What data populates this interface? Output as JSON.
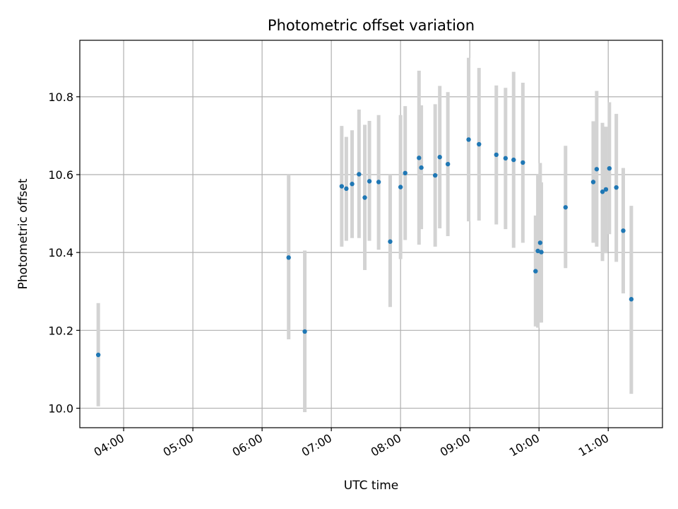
{
  "chart_data": {
    "type": "scatter",
    "title": "Photometric offset variation",
    "xlabel": "UTC time",
    "ylabel": "Photometric offset",
    "x_unit": "UTC time (HH:MM)",
    "xlim": [
      "03:22",
      "11:47"
    ],
    "ylim": [
      9.95,
      10.945
    ],
    "x_ticks": [
      "04:00",
      "05:00",
      "06:00",
      "07:00",
      "08:00",
      "09:00",
      "10:00",
      "11:00"
    ],
    "y_ticks": [
      "10.0",
      "10.2",
      "10.4",
      "10.6",
      "10.8"
    ],
    "grid": true,
    "colors": {
      "point": "#1f77b4",
      "errorbar": "#d3d3d3"
    },
    "points": [
      {
        "x": "03:38",
        "y": 10.137,
        "lo": 10.005,
        "hi": 10.27
      },
      {
        "x": "06:23",
        "y": 10.387,
        "lo": 10.177,
        "hi": 10.6
      },
      {
        "x": "06:37",
        "y": 10.197,
        "lo": 9.99,
        "hi": 10.405
      },
      {
        "x": "07:09",
        "y": 10.57,
        "lo": 10.415,
        "hi": 10.725
      },
      {
        "x": "07:13",
        "y": 10.564,
        "lo": 10.43,
        "hi": 10.697
      },
      {
        "x": "07:18",
        "y": 10.576,
        "lo": 10.437,
        "hi": 10.714
      },
      {
        "x": "07:24",
        "y": 10.601,
        "lo": 10.437,
        "hi": 10.767
      },
      {
        "x": "07:29",
        "y": 10.541,
        "lo": 10.355,
        "hi": 10.728
      },
      {
        "x": "07:33",
        "y": 10.583,
        "lo": 10.43,
        "hi": 10.738
      },
      {
        "x": "07:41",
        "y": 10.581,
        "lo": 10.407,
        "hi": 10.753
      },
      {
        "x": "07:51",
        "y": 10.428,
        "lo": 10.26,
        "hi": 10.6
      },
      {
        "x": "08:00",
        "y": 10.568,
        "lo": 10.383,
        "hi": 10.753
      },
      {
        "x": "08:04",
        "y": 10.604,
        "lo": 10.432,
        "hi": 10.776
      },
      {
        "x": "08:16",
        "y": 10.643,
        "lo": 10.42,
        "hi": 10.867
      },
      {
        "x": "08:18",
        "y": 10.618,
        "lo": 10.46,
        "hi": 10.778
      },
      {
        "x": "08:30",
        "y": 10.598,
        "lo": 10.415,
        "hi": 10.781
      },
      {
        "x": "08:34",
        "y": 10.645,
        "lo": 10.462,
        "hi": 10.828
      },
      {
        "x": "08:41",
        "y": 10.627,
        "lo": 10.442,
        "hi": 10.812
      },
      {
        "x": "08:59",
        "y": 10.69,
        "lo": 10.48,
        "hi": 10.9
      },
      {
        "x": "09:08",
        "y": 10.678,
        "lo": 10.482,
        "hi": 10.874
      },
      {
        "x": "09:23",
        "y": 10.651,
        "lo": 10.472,
        "hi": 10.829
      },
      {
        "x": "09:31",
        "y": 10.642,
        "lo": 10.46,
        "hi": 10.823
      },
      {
        "x": "09:38",
        "y": 10.638,
        "lo": 10.412,
        "hi": 10.864
      },
      {
        "x": "09:46",
        "y": 10.631,
        "lo": 10.425,
        "hi": 10.836
      },
      {
        "x": "09:57",
        "y": 10.352,
        "lo": 10.21,
        "hi": 10.495
      },
      {
        "x": "09:59",
        "y": 10.404,
        "lo": 10.207,
        "hi": 10.6
      },
      {
        "x": "10:01",
        "y": 10.425,
        "lo": 10.22,
        "hi": 10.63
      },
      {
        "x": "10:02",
        "y": 10.401,
        "lo": 10.22,
        "hi": 10.58
      },
      {
        "x": "10:23",
        "y": 10.516,
        "lo": 10.36,
        "hi": 10.674
      },
      {
        "x": "10:47",
        "y": 10.581,
        "lo": 10.425,
        "hi": 10.737
      },
      {
        "x": "10:50",
        "y": 10.614,
        "lo": 10.415,
        "hi": 10.815
      },
      {
        "x": "10:55",
        "y": 10.556,
        "lo": 10.378,
        "hi": 10.733
      },
      {
        "x": "10:58",
        "y": 10.562,
        "lo": 10.398,
        "hi": 10.723
      },
      {
        "x": "11:01",
        "y": 10.616,
        "lo": 10.447,
        "hi": 10.786
      },
      {
        "x": "11:07",
        "y": 10.567,
        "lo": 10.376,
        "hi": 10.756
      },
      {
        "x": "11:13",
        "y": 10.456,
        "lo": 10.295,
        "hi": 10.617
      },
      {
        "x": "11:20",
        "y": 10.28,
        "lo": 10.037,
        "hi": 10.52
      }
    ]
  }
}
